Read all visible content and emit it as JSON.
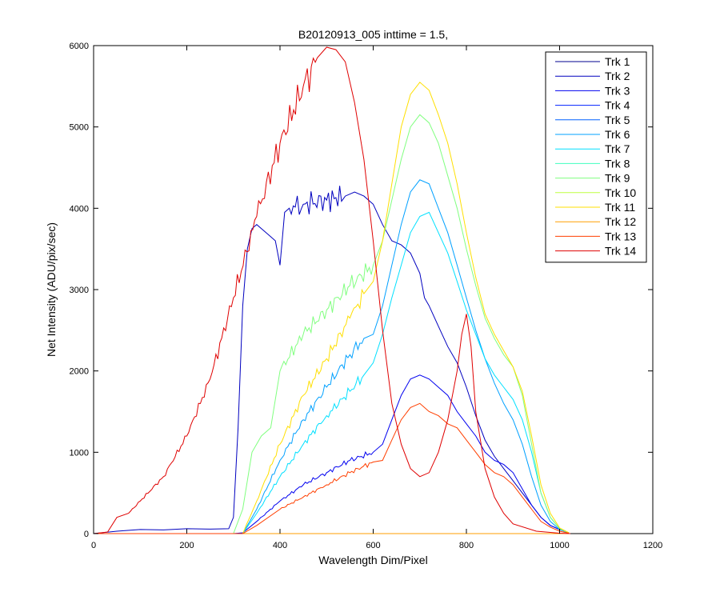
{
  "chart_data": {
    "type": "line",
    "title": "B20120913_005 inttime = 1.5,",
    "xlabel": "Wavelength Dim/Pixel",
    "ylabel": "Net Intensity (ADU/pix/sec)",
    "xlim": [
      0,
      1200
    ],
    "ylim": [
      0,
      6000
    ],
    "xticks": [
      0,
      200,
      400,
      600,
      800,
      1000,
      1200
    ],
    "yticks": [
      0,
      1000,
      2000,
      3000,
      4000,
      5000,
      6000
    ],
    "grid": false,
    "legend_position": "top-right",
    "series": [
      {
        "name": "Trk 1",
        "color": "#00008F",
        "x": [
          0,
          300,
          1023
        ],
        "y": [
          0,
          0,
          0
        ]
      },
      {
        "name": "Trk 2",
        "color": "#0000BF",
        "x": [
          0,
          50,
          100,
          150,
          200,
          250,
          290,
          300,
          310,
          320,
          330,
          340,
          350,
          360,
          370,
          380,
          390,
          400,
          410,
          420,
          450,
          500,
          540,
          560,
          580,
          600,
          620,
          640,
          660,
          680,
          700,
          710,
          720,
          740,
          760,
          780,
          800,
          820,
          840,
          860,
          880,
          900,
          920,
          940,
          960,
          980,
          1000,
          1020
        ],
        "y": [
          0,
          30,
          50,
          45,
          60,
          55,
          60,
          200,
          1300,
          2800,
          3500,
          3750,
          3800,
          3750,
          3700,
          3650,
          3600,
          3300,
          3950,
          4000,
          4050,
          4100,
          4150,
          4200,
          4150,
          4050,
          3800,
          3600,
          3550,
          3450,
          3200,
          2900,
          2800,
          2550,
          2300,
          2100,
          1800,
          1450,
          1150,
          950,
          800,
          650,
          500,
          350,
          200,
          100,
          50,
          10
        ]
      },
      {
        "name": "Trk 3",
        "color": "#0000EF",
        "x": [
          0,
          300,
          320,
          350,
          400,
          450,
          500,
          550,
          600,
          620,
          640,
          660,
          680,
          700,
          720,
          740,
          760,
          780,
          800,
          820,
          840,
          860,
          880,
          900,
          920,
          940,
          960,
          980,
          1000,
          1020
        ],
        "y": [
          0,
          0,
          10,
          150,
          400,
          600,
          750,
          900,
          1000,
          1100,
          1400,
          1700,
          1900,
          1950,
          1900,
          1800,
          1700,
          1500,
          1350,
          1200,
          1000,
          900,
          850,
          750,
          550,
          350,
          200,
          100,
          50,
          10
        ]
      },
      {
        "name": "Trk 4",
        "color": "#0020FF",
        "x": [
          0,
          1023
        ],
        "y": [
          0,
          0
        ]
      },
      {
        "name": "Trk 5",
        "color": "#0060FF",
        "x": [
          0,
          1023
        ],
        "y": [
          0,
          0
        ]
      },
      {
        "name": "Trk 6",
        "color": "#00A0FF",
        "x": [
          0,
          320,
          350,
          400,
          450,
          500,
          550,
          580,
          600,
          620,
          640,
          660,
          680,
          700,
          720,
          740,
          760,
          780,
          800,
          820,
          840,
          860,
          880,
          900,
          920,
          940,
          960,
          980,
          1000,
          1020
        ],
        "y": [
          0,
          0,
          300,
          900,
          1400,
          1800,
          2200,
          2400,
          2450,
          2800,
          3300,
          3800,
          4200,
          4350,
          4300,
          4000,
          3700,
          3300,
          2900,
          2500,
          2150,
          1850,
          1600,
          1400,
          1100,
          700,
          350,
          150,
          50,
          10
        ]
      },
      {
        "name": "Trk 7",
        "color": "#00E0FF",
        "x": [
          0,
          320,
          350,
          400,
          450,
          500,
          550,
          580,
          600,
          620,
          640,
          660,
          680,
          700,
          720,
          740,
          760,
          780,
          800,
          820,
          840,
          860,
          880,
          900,
          920,
          940,
          960,
          980,
          1000,
          1020
        ],
        "y": [
          0,
          0,
          250,
          700,
          1100,
          1450,
          1750,
          1950,
          2100,
          2450,
          2900,
          3300,
          3700,
          3900,
          3950,
          3700,
          3450,
          3100,
          2750,
          2450,
          2150,
          1950,
          1800,
          1650,
          1400,
          1000,
          500,
          200,
          60,
          10
        ]
      },
      {
        "name": "Trk 8",
        "color": "#40FFBF",
        "x": [
          0,
          1023
        ],
        "y": [
          0,
          0
        ]
      },
      {
        "name": "Trk 9",
        "color": "#80FF7F",
        "x": [
          0,
          300,
          320,
          340,
          360,
          380,
          400,
          450,
          500,
          550,
          600,
          620,
          640,
          660,
          680,
          700,
          720,
          740,
          760,
          780,
          800,
          820,
          840,
          860,
          880,
          900,
          920,
          940,
          960,
          980,
          1000,
          1020
        ],
        "y": [
          0,
          0,
          300,
          1000,
          1200,
          1300,
          2000,
          2450,
          2750,
          3050,
          3300,
          3600,
          4100,
          4600,
          5000,
          5150,
          5050,
          4800,
          4400,
          4000,
          3500,
          3050,
          2650,
          2400,
          2200,
          2050,
          1700,
          1100,
          500,
          200,
          60,
          10
        ]
      },
      {
        "name": "Trk 10",
        "color": "#BFFF40",
        "x": [
          0,
          1023
        ],
        "y": [
          0,
          0
        ]
      },
      {
        "name": "Trk 11",
        "color": "#FFDF00",
        "x": [
          0,
          320,
          350,
          400,
          450,
          500,
          550,
          580,
          600,
          620,
          640,
          660,
          680,
          700,
          720,
          740,
          760,
          780,
          800,
          820,
          840,
          860,
          880,
          900,
          920,
          940,
          960,
          980,
          1000,
          1020
        ],
        "y": [
          0,
          0,
          400,
          1100,
          1700,
          2150,
          2650,
          2950,
          3100,
          3600,
          4300,
          5000,
          5400,
          5550,
          5450,
          5150,
          4800,
          4300,
          3700,
          3150,
          2700,
          2450,
          2250,
          2050,
          1750,
          1200,
          600,
          250,
          70,
          10
        ]
      },
      {
        "name": "Trk 12",
        "color": "#FF9F00",
        "x": [
          0,
          1023
        ],
        "y": [
          0,
          0
        ]
      },
      {
        "name": "Trk 13",
        "color": "#FF3F00",
        "x": [
          0,
          320,
          350,
          400,
          450,
          500,
          550,
          600,
          620,
          640,
          660,
          680,
          700,
          720,
          740,
          760,
          780,
          800,
          820,
          840,
          860,
          880,
          900,
          920,
          940,
          960,
          980,
          1000,
          1020
        ],
        "y": [
          0,
          0,
          100,
          300,
          450,
          600,
          750,
          880,
          900,
          1150,
          1400,
          1550,
          1600,
          1500,
          1450,
          1350,
          1300,
          1150,
          1000,
          850,
          750,
          700,
          600,
          450,
          300,
          150,
          80,
          30,
          5
        ]
      },
      {
        "name": "Trk 14",
        "color": "#DF0000",
        "x": [
          0,
          30,
          50,
          75,
          100,
          150,
          200,
          250,
          300,
          350,
          400,
          450,
          480,
          500,
          520,
          540,
          560,
          580,
          600,
          620,
          640,
          660,
          680,
          700,
          720,
          740,
          760,
          780,
          790,
          800,
          810,
          820,
          840,
          860,
          880,
          900,
          950,
          1000,
          1023
        ],
        "y": [
          0,
          20,
          200,
          250,
          400,
          700,
          1200,
          1900,
          2900,
          3900,
          4800,
          5500,
          5850,
          5980,
          5950,
          5800,
          5300,
          4600,
          3600,
          2500,
          1600,
          1100,
          800,
          700,
          750,
          1000,
          1400,
          2000,
          2450,
          2700,
          2300,
          1500,
          800,
          450,
          250,
          120,
          30,
          5,
          0
        ]
      }
    ]
  }
}
